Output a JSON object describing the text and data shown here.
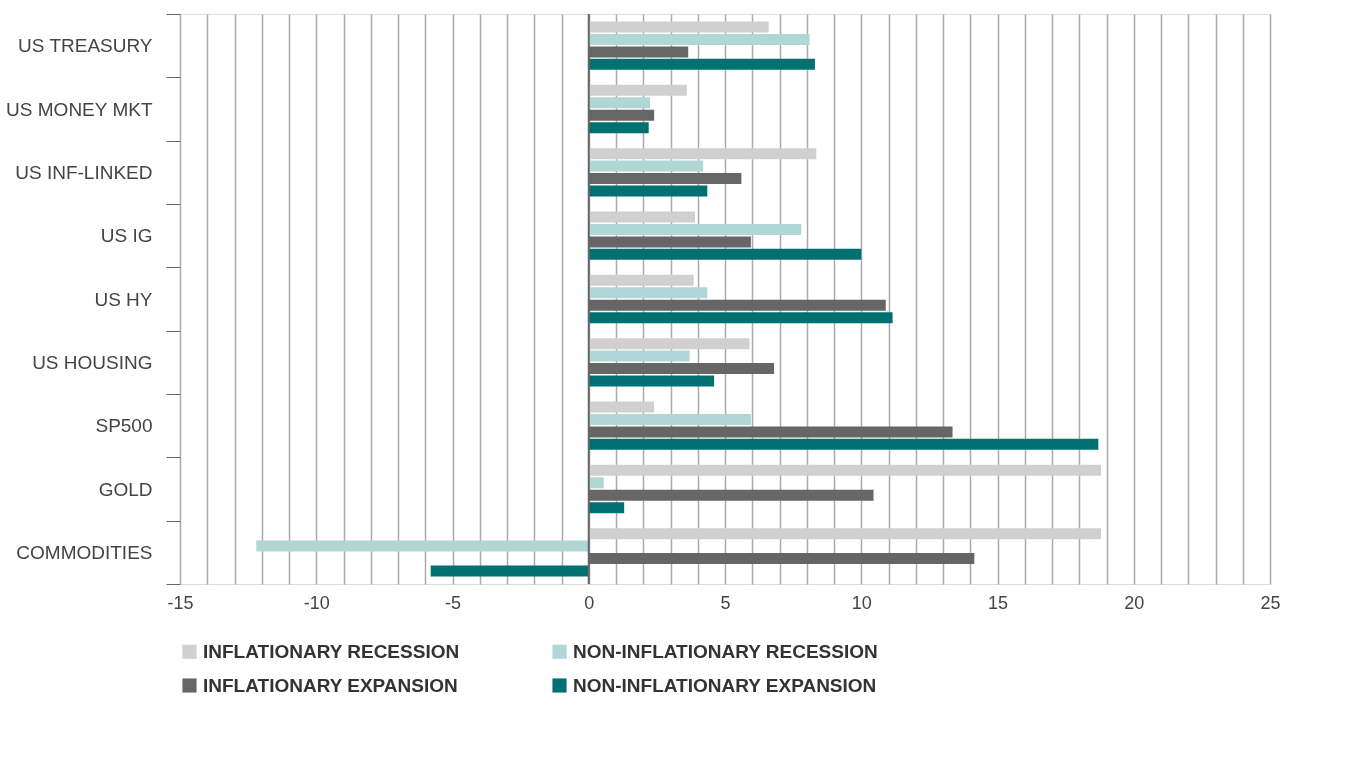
{
  "chart_data": {
    "type": "bar",
    "orientation": "horizontal",
    "categories": [
      "US TREASURY",
      "US MONEY MKT",
      "US INF-LINKED",
      "US IG",
      "US HY",
      "US HOUSING",
      "SP500",
      "GOLD",
      "COMMODITIES"
    ],
    "series": [
      {
        "name": "INFLATIONARY RECESSION",
        "color": "#d0d0d0",
        "values": [
          6.6,
          3.6,
          8.35,
          3.9,
          3.85,
          5.9,
          2.4,
          18.8,
          18.8
        ]
      },
      {
        "name": "NON-INFLATIONARY RECESSION",
        "color": "#b0d6d6",
        "values": [
          8.1,
          2.25,
          4.2,
          7.8,
          4.35,
          3.7,
          5.95,
          0.55,
          -12.2
        ]
      },
      {
        "name": "INFLATIONARY EXPANSION",
        "color": "#666666",
        "values": [
          3.65,
          2.4,
          5.6,
          5.95,
          10.9,
          6.8,
          13.35,
          10.45,
          14.15
        ]
      },
      {
        "name": "NON-INFLATIONARY EXPANSION",
        "color": "#007070",
        "values": [
          8.3,
          2.2,
          4.35,
          10.0,
          11.15,
          4.6,
          18.7,
          1.3,
          -5.8
        ]
      }
    ],
    "xlim": [
      -15,
      25
    ],
    "xticks": [
      -15,
      {
        "value": -14,
        "label": null
      },
      {
        "value": -13,
        "label": null
      },
      {
        "value": -12,
        "label": null
      },
      {
        "value": -11,
        "label": null
      },
      -10,
      {
        "value": -9,
        "label": null
      },
      {
        "value": -8,
        "label": null
      },
      {
        "value": -7,
        "label": null
      },
      {
        "value": -6,
        "label": null
      },
      -5,
      {
        "value": -4,
        "label": null
      },
      {
        "value": -3,
        "label": null
      },
      {
        "value": -2,
        "label": null
      },
      {
        "value": -1,
        "label": null
      },
      0,
      {
        "value": 1,
        "label": null
      },
      {
        "value": 2,
        "label": null
      },
      {
        "value": 3,
        "label": null
      },
      {
        "value": 4,
        "label": null
      },
      5,
      {
        "value": 6,
        "label": null
      },
      {
        "value": 7,
        "label": null
      },
      {
        "value": 8,
        "label": null
      },
      {
        "value": 9,
        "label": null
      },
      10,
      {
        "value": 11,
        "label": null
      },
      {
        "value": 12,
        "label": null
      },
      {
        "value": 13,
        "label": null
      },
      {
        "value": 14,
        "label": null
      },
      15,
      {
        "value": 16,
        "label": null
      },
      {
        "value": 17,
        "label": null
      },
      {
        "value": 18,
        "label": null
      },
      {
        "value": 19,
        "label": null
      },
      20,
      {
        "value": 21,
        "label": null
      },
      {
        "value": 22,
        "label": null
      },
      {
        "value": 23,
        "label": null
      },
      {
        "value": 24,
        "label": null
      },
      25
    ],
    "grid": "x",
    "legend": "bottom"
  }
}
